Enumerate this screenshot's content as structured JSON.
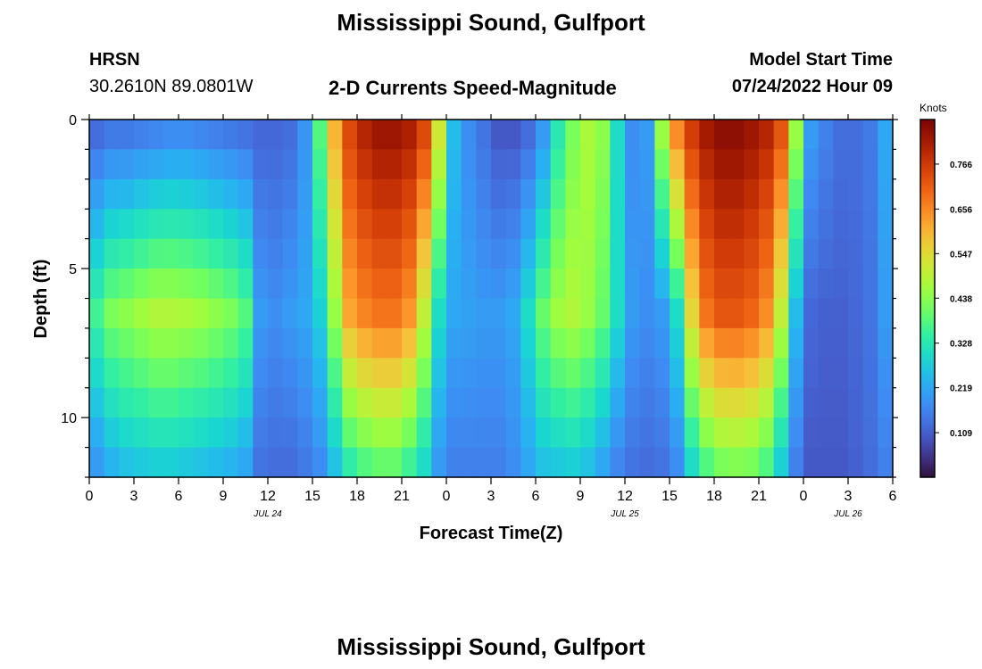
{
  "header": {
    "title": "Mississippi Sound, Gulfport",
    "station_id": "HRSN",
    "coordinates": "30.2610N  89.0801W",
    "product": "2-D Currents Speed-Magnitude",
    "model_start_label": "Model Start Time",
    "model_start_value": "07/24/2022 Hour 09"
  },
  "footer": {
    "title": "Mississippi Sound, Gulfport"
  },
  "chart_data": {
    "type": "heatmap",
    "title": "2-D Currents Speed-Magnitude",
    "xlabel": "Forecast Time(Z)",
    "ylabel": "Depth (ft)",
    "x_ticks": [
      {
        "hours": 0,
        "label": "0"
      },
      {
        "hours": 3,
        "label": "3"
      },
      {
        "hours": 6,
        "label": "6"
      },
      {
        "hours": 9,
        "label": "9"
      },
      {
        "hours": 12,
        "label": "12"
      },
      {
        "hours": 15,
        "label": "15"
      },
      {
        "hours": 18,
        "label": "18"
      },
      {
        "hours": 21,
        "label": "21"
      },
      {
        "hours": 24,
        "label": "0"
      },
      {
        "hours": 27,
        "label": "3"
      },
      {
        "hours": 30,
        "label": "6"
      },
      {
        "hours": 33,
        "label": "9"
      },
      {
        "hours": 36,
        "label": "12"
      },
      {
        "hours": 39,
        "label": "15"
      },
      {
        "hours": 42,
        "label": "18"
      },
      {
        "hours": 45,
        "label": "21"
      },
      {
        "hours": 48,
        "label": "0"
      },
      {
        "hours": 51,
        "label": "3"
      },
      {
        "hours": 54,
        "label": "6"
      }
    ],
    "date_labels": [
      {
        "hours": 12,
        "label": "JUL 24"
      },
      {
        "hours": 36,
        "label": "JUL 25"
      },
      {
        "hours": 51,
        "label": "JUL 26"
      }
    ],
    "xlim_hours": [
      0,
      54
    ],
    "y_ticks": [
      {
        "value": 0,
        "label": "0"
      },
      {
        "value": 5,
        "label": "5"
      },
      {
        "value": 10,
        "label": "10"
      }
    ],
    "ylim": [
      0,
      12
    ],
    "y_inverted": true,
    "depth_rows_ft": [
      0.5,
      1.5,
      2.5,
      3.5,
      4.5,
      5.5,
      6.5,
      7.5,
      8.5,
      9.5,
      10.5,
      11.5
    ],
    "time_step_hours": 1,
    "profile_surface": [
      0.13,
      0.15,
      0.15,
      0.16,
      0.17,
      0.18,
      0.18,
      0.17,
      0.16,
      0.15,
      0.14,
      0.12,
      0.12,
      0.13,
      0.19,
      0.38,
      0.6,
      0.74,
      0.8,
      0.83,
      0.83,
      0.81,
      0.74,
      0.52,
      0.25,
      0.18,
      0.14,
      0.1,
      0.1,
      0.13,
      0.2,
      0.33,
      0.42,
      0.47,
      0.44,
      0.3,
      0.18,
      0.2,
      0.45,
      0.65,
      0.76,
      0.82,
      0.85,
      0.85,
      0.83,
      0.8,
      0.72,
      0.45,
      0.2,
      0.16,
      0.13,
      0.13,
      0.15,
      0.22,
      0.28
    ],
    "profile_mid": [
      0.36,
      0.42,
      0.44,
      0.46,
      0.48,
      0.48,
      0.47,
      0.46,
      0.44,
      0.42,
      0.38,
      0.2,
      0.18,
      0.2,
      0.22,
      0.28,
      0.45,
      0.62,
      0.66,
      0.68,
      0.68,
      0.64,
      0.5,
      0.3,
      0.22,
      0.21,
      0.2,
      0.2,
      0.22,
      0.3,
      0.4,
      0.46,
      0.48,
      0.45,
      0.4,
      0.3,
      0.2,
      0.18,
      0.2,
      0.3,
      0.55,
      0.68,
      0.72,
      0.72,
      0.7,
      0.65,
      0.5,
      0.25,
      0.12,
      0.11,
      0.11,
      0.12,
      0.14,
      0.2,
      0.25
    ],
    "profile_bottom": [
      0.2,
      0.24,
      0.26,
      0.27,
      0.28,
      0.28,
      0.27,
      0.26,
      0.25,
      0.24,
      0.22,
      0.14,
      0.13,
      0.13,
      0.15,
      0.18,
      0.26,
      0.34,
      0.38,
      0.4,
      0.4,
      0.36,
      0.3,
      0.2,
      0.16,
      0.16,
      0.16,
      0.16,
      0.18,
      0.22,
      0.26,
      0.27,
      0.28,
      0.26,
      0.22,
      0.17,
      0.14,
      0.13,
      0.14,
      0.18,
      0.3,
      0.38,
      0.42,
      0.43,
      0.42,
      0.38,
      0.28,
      0.16,
      0.1,
      0.1,
      0.1,
      0.11,
      0.13,
      0.16,
      0.2
    ],
    "mid_depth_ft": 6.5,
    "colorbar": {
      "label": "Knots",
      "min": 0.0,
      "max": 0.875,
      "ticks": [
        "0.109",
        "0.219",
        "0.328",
        "0.438",
        "0.547",
        "0.656",
        "0.766"
      ],
      "tick_values": [
        0.109,
        0.219,
        0.328,
        0.438,
        0.547,
        0.656,
        0.766
      ],
      "colormap": "turbo"
    }
  }
}
